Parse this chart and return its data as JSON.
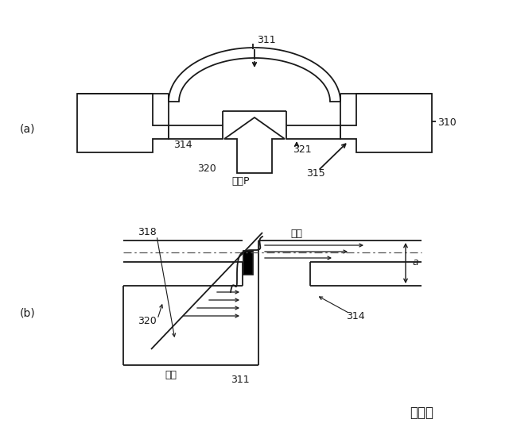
{
  "bg_color": "#ffffff",
  "line_color": "#1a1a1a",
  "fig_label": "図３１",
  "panel_a": "(a)",
  "panel_b": "(b)",
  "labels_a": {
    "311": "311",
    "310": "310",
    "314": "314",
    "320": "320",
    "321": "321",
    "315": "315",
    "atsuryoku": "圧力P"
  },
  "labels_b": {
    "318": "318",
    "hikucho": "引張",
    "a": "a",
    "320": "320",
    "311": "311",
    "314": "314",
    "assho": "圧縮"
  }
}
